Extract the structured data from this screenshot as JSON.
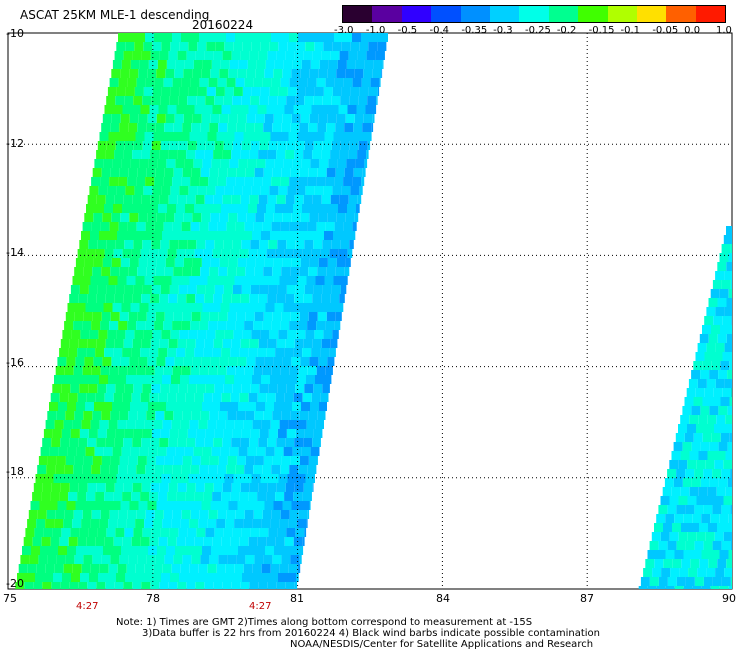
{
  "title": "ASCAT 25KM MLE-1 descending",
  "date": "20160224",
  "colorbar": {
    "labels": [
      "-3.0",
      "-1.0",
      "-0.5",
      "-0.4",
      "-0.35",
      "-0.3",
      "-0.25",
      "-0.2",
      "-0.15",
      "-0.1",
      "-0.05",
      "0.0",
      "1.0"
    ],
    "colors": [
      "#2a0030",
      "#5a00a0",
      "#3000ff",
      "#0050ff",
      "#0090ff",
      "#00d0ff",
      "#00ffe8",
      "#00ff90",
      "#40ff00",
      "#b0ff00",
      "#ffe000",
      "#ff6000",
      "#ff1a00"
    ]
  },
  "axes": {
    "lat_labels": [
      "-10",
      "-12",
      "-14",
      "-16",
      "-18",
      "-20"
    ],
    "lon_labels": [
      "75",
      "78",
      "81",
      "84",
      "87",
      "90"
    ],
    "lat_range": [
      -20,
      -10
    ],
    "lon_range": [
      75,
      90
    ],
    "grid": true
  },
  "time_labels": [
    "4:27",
    "4:27"
  ],
  "notes": {
    "line1": "Note: 1) Times are GMT 2)Times along bottom correspond to measurement at -15S",
    "line2": "3)Data buffer is 22 hrs from 20160224 4) Black wind barbs indicate possible contamination",
    "line3": "NOAA/NESDIS/Center for Satellite Applications and Research"
  }
}
